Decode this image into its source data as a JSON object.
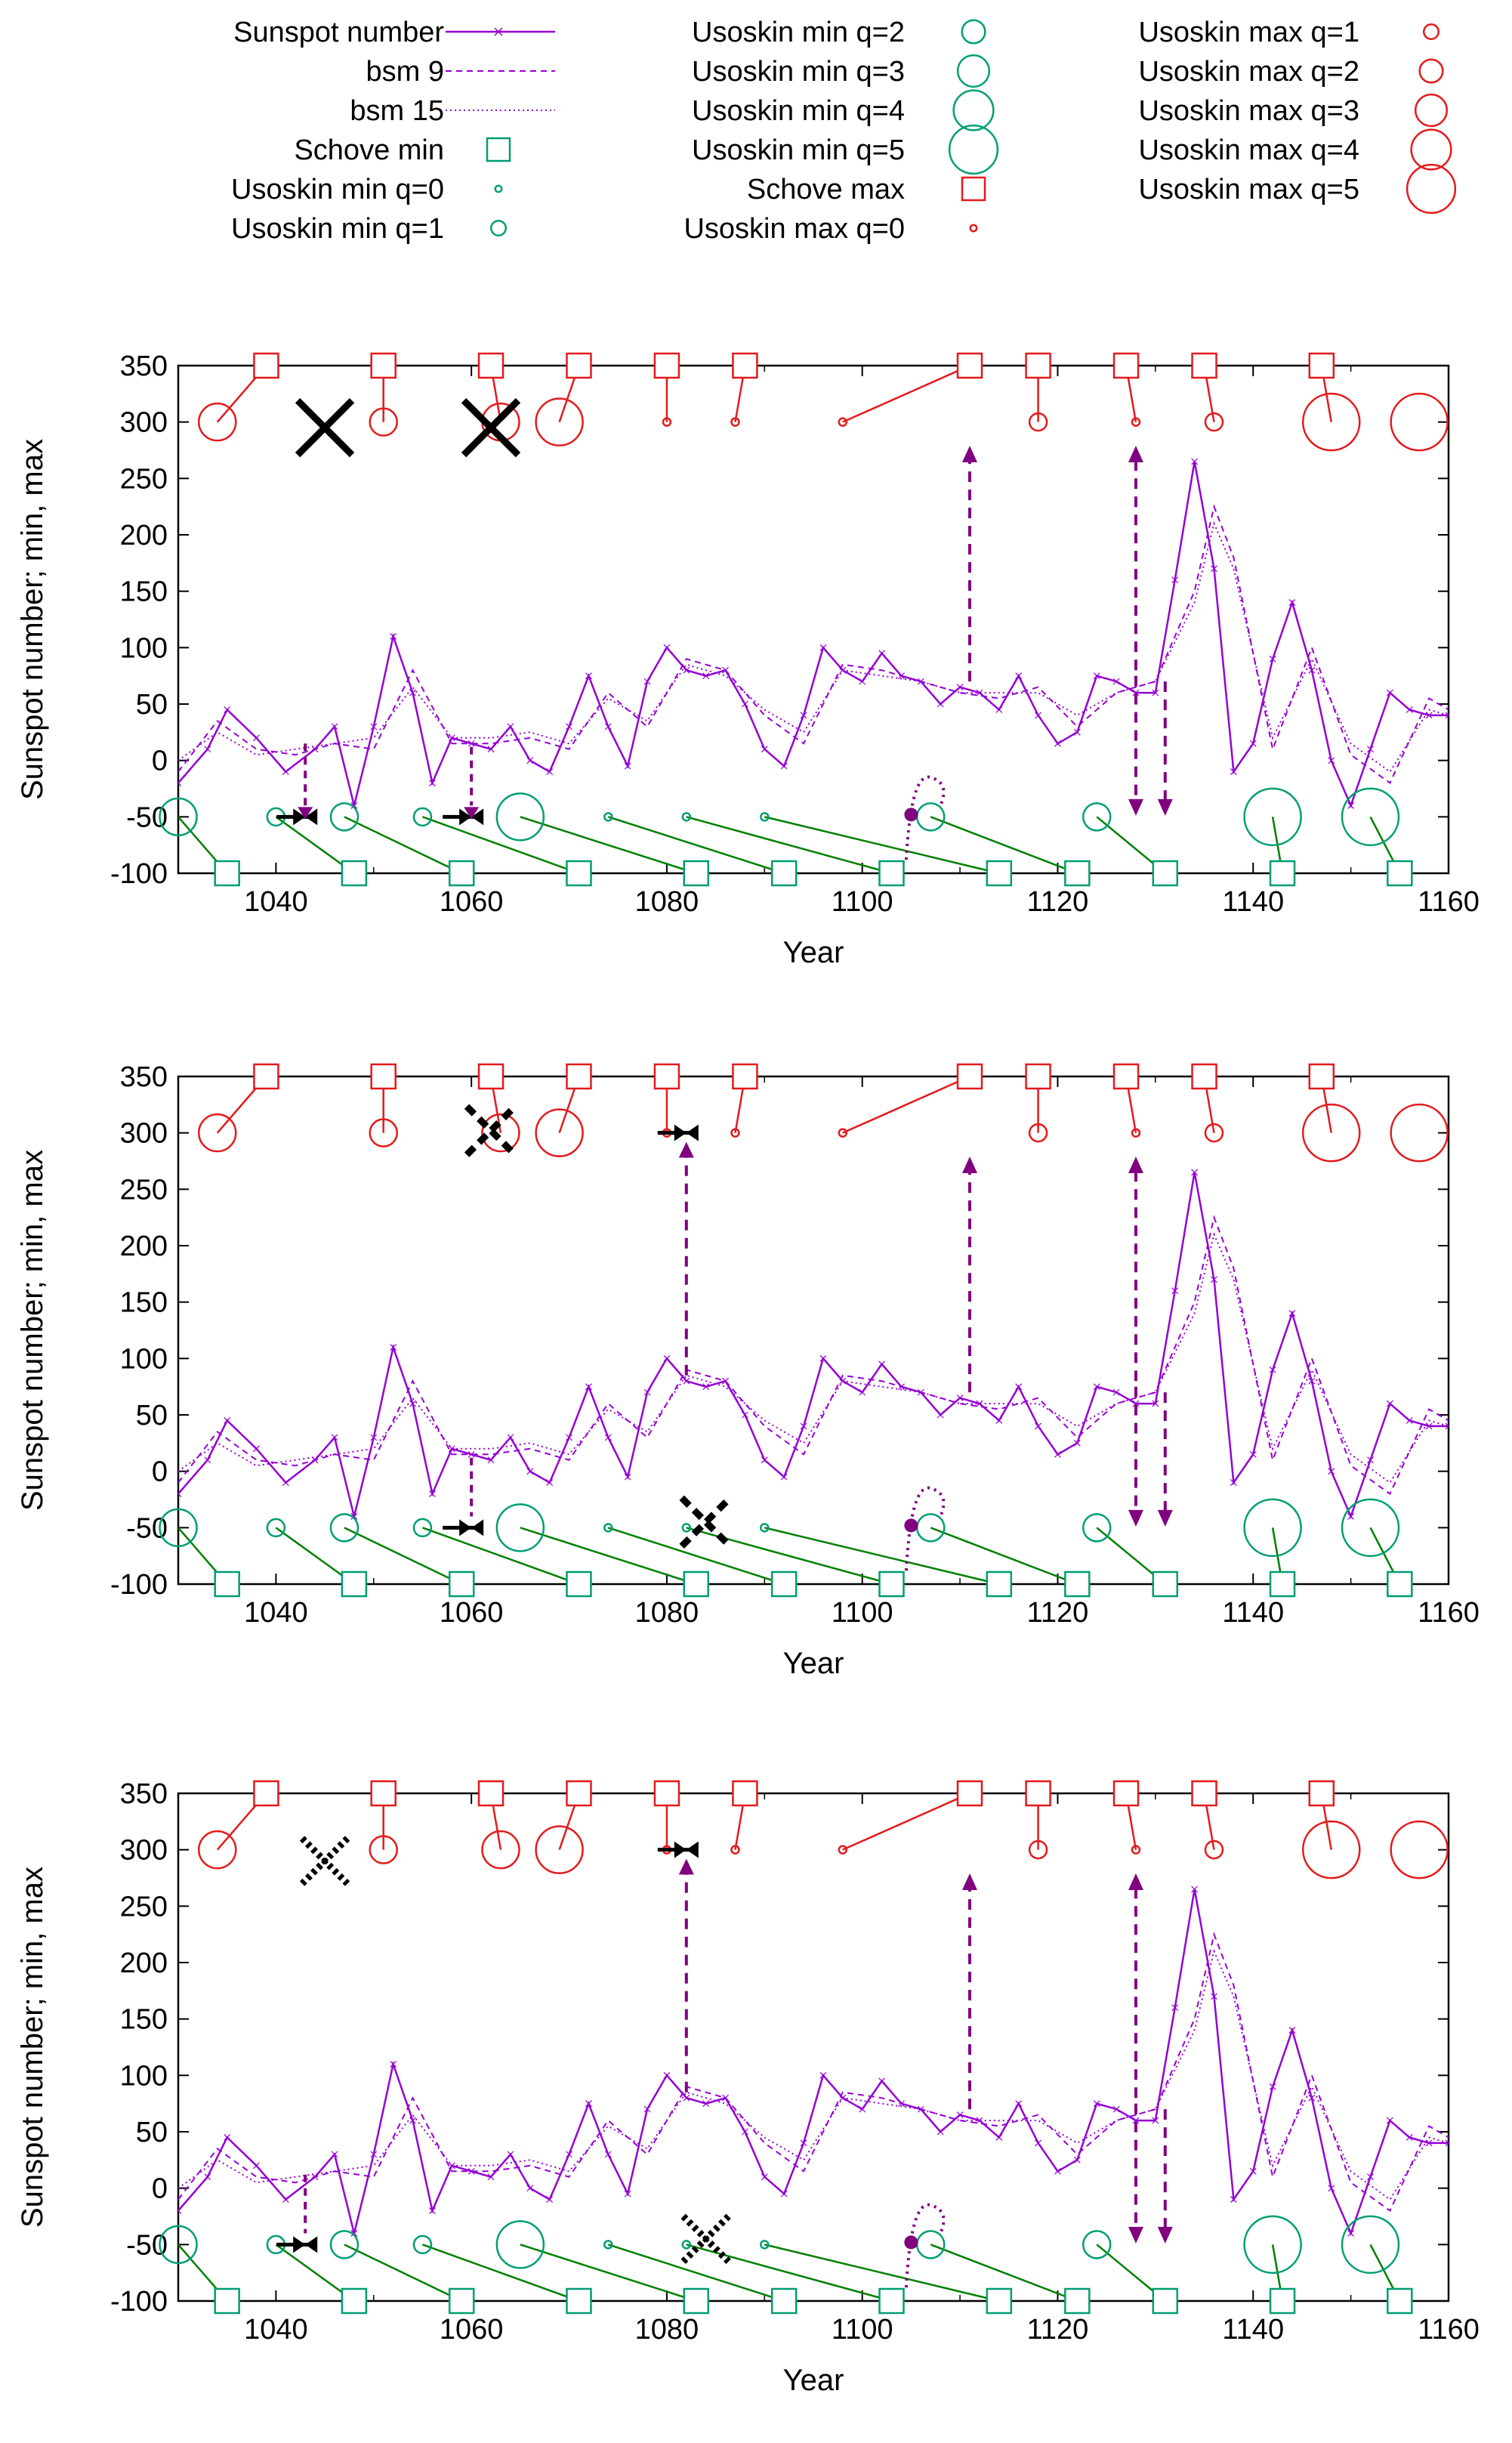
{
  "colors": {
    "sunspot": "#9400d3",
    "bsm": "#9400d3",
    "min": "#009e73",
    "min_line": "#008000",
    "max": "#e41a1c",
    "annotation": "#800080",
    "cross": "#000000"
  },
  "legend": {
    "items": [
      {
        "label": "Sunspot number",
        "kind": "line-solid"
      },
      {
        "label": "bsm 9",
        "kind": "line-dash"
      },
      {
        "label": "bsm 15",
        "kind": "line-dot"
      },
      {
        "label": "Schove min",
        "kind": "sq-green"
      },
      {
        "label": "Usoskin min q=0",
        "kind": "circ-green",
        "q": 0
      },
      {
        "label": "Usoskin min q=1",
        "kind": "circ-green",
        "q": 1
      },
      {
        "label": "Usoskin min q=2",
        "kind": "circ-green",
        "q": 2
      },
      {
        "label": "Usoskin min q=3",
        "kind": "circ-green",
        "q": 3
      },
      {
        "label": "Usoskin min q=4",
        "kind": "circ-green",
        "q": 4
      },
      {
        "label": "Usoskin min q=5",
        "kind": "circ-green",
        "q": 5
      },
      {
        "label": "Schove max",
        "kind": "sq-red"
      },
      {
        "label": "Usoskin max q=0",
        "kind": "circ-red",
        "q": 0
      },
      {
        "label": "Usoskin max q=1",
        "kind": "circ-red",
        "q": 1
      },
      {
        "label": "Usoskin max q=2",
        "kind": "circ-red",
        "q": 2
      },
      {
        "label": "Usoskin max q=3",
        "kind": "circ-red",
        "q": 3
      },
      {
        "label": "Usoskin max q=4",
        "kind": "circ-red",
        "q": 4
      },
      {
        "label": "Usoskin max q=5",
        "kind": "circ-red",
        "q": 5
      }
    ]
  },
  "chart_data": [
    {
      "type": "line",
      "xlabel": "Year",
      "ylabel": "Sunspot number; min, max",
      "xlim": [
        1030,
        1160
      ],
      "ylim": [
        -100,
        350
      ],
      "xticks": [
        1040,
        1060,
        1080,
        1100,
        1120,
        1140,
        1160
      ],
      "yticks": [
        -100,
        -50,
        0,
        50,
        100,
        150,
        200,
        250,
        300,
        350
      ],
      "series": [
        {
          "name": "Sunspot number",
          "style": "solid",
          "x": [
            1030,
            1033,
            1035,
            1038,
            1041,
            1044,
            1046,
            1048,
            1050,
            1052,
            1054,
            1056,
            1058,
            1060,
            1062,
            1064,
            1066,
            1068,
            1070,
            1072,
            1074,
            1076,
            1078,
            1080,
            1082,
            1084,
            1086,
            1088,
            1090,
            1092,
            1094,
            1096,
            1098,
            1100,
            1102,
            1104,
            1106,
            1108,
            1110,
            1112,
            1114,
            1116,
            1118,
            1120,
            1122,
            1124,
            1126,
            1128,
            1130,
            1132,
            1134,
            1136,
            1138,
            1140,
            1142,
            1144,
            1146,
            1148,
            1150,
            1152,
            1154,
            1156,
            1158,
            1160
          ],
          "y": [
            -20,
            10,
            45,
            20,
            -10,
            10,
            30,
            -40,
            30,
            110,
            60,
            -20,
            20,
            15,
            10,
            30,
            0,
            -10,
            30,
            75,
            30,
            -5,
            70,
            100,
            80,
            75,
            80,
            50,
            10,
            -5,
            40,
            100,
            80,
            70,
            95,
            75,
            70,
            50,
            65,
            60,
            45,
            75,
            40,
            15,
            25,
            75,
            70,
            60,
            60,
            160,
            265,
            170,
            -10,
            15,
            90,
            140,
            80,
            0,
            -40,
            10,
            60,
            45,
            40,
            40
          ]
        },
        {
          "name": "bsm 9",
          "style": "dash",
          "x": [
            1030,
            1034,
            1038,
            1042,
            1046,
            1050,
            1054,
            1058,
            1062,
            1066,
            1070,
            1074,
            1078,
            1082,
            1086,
            1090,
            1094,
            1098,
            1102,
            1106,
            1110,
            1114,
            1118,
            1122,
            1126,
            1130,
            1134,
            1136,
            1138,
            1142,
            1146,
            1150,
            1154,
            1158,
            1160
          ],
          "y": [
            -10,
            35,
            10,
            5,
            15,
            10,
            80,
            15,
            15,
            20,
            10,
            60,
            30,
            90,
            80,
            40,
            15,
            85,
            80,
            70,
            60,
            55,
            65,
            30,
            60,
            70,
            150,
            225,
            180,
            10,
            100,
            5,
            -20,
            55,
            45
          ]
        },
        {
          "name": "bsm 15",
          "style": "dot",
          "x": [
            1030,
            1034,
            1038,
            1042,
            1046,
            1050,
            1054,
            1058,
            1062,
            1066,
            1070,
            1074,
            1078,
            1082,
            1086,
            1090,
            1094,
            1098,
            1102,
            1106,
            1110,
            1114,
            1118,
            1122,
            1126,
            1130,
            1134,
            1136,
            1138,
            1142,
            1146,
            1150,
            1154,
            1158,
            1160
          ],
          "y": [
            0,
            25,
            5,
            10,
            15,
            20,
            65,
            20,
            20,
            25,
            15,
            55,
            35,
            85,
            75,
            45,
            25,
            80,
            75,
            70,
            60,
            60,
            60,
            40,
            60,
            70,
            140,
            210,
            170,
            20,
            90,
            15,
            -10,
            45,
            40
          ]
        }
      ],
      "schove_min": [
        1035,
        1048,
        1059,
        1071,
        1083,
        1092,
        1103,
        1114,
        1122,
        1131,
        1143,
        1155
      ],
      "schove_max": [
        1039,
        1051,
        1062,
        1071,
        1080,
        1088,
        1111,
        1118,
        1127,
        1135,
        1147
      ],
      "usoskin_min": [
        {
          "x": 1030,
          "q": 3
        },
        {
          "x": 1040,
          "q": 1
        },
        {
          "x": 1047,
          "q": 2
        },
        {
          "x": 1055,
          "q": 1
        },
        {
          "x": 1065,
          "q": 4
        },
        {
          "x": 1074,
          "q": 0
        },
        {
          "x": 1082,
          "q": 0
        },
        {
          "x": 1090,
          "q": 0
        },
        {
          "x": 1107,
          "q": 2
        },
        {
          "x": 1124,
          "q": 2
        },
        {
          "x": 1142,
          "q": 5
        },
        {
          "x": 1152,
          "q": 5
        }
      ],
      "usoskin_max": [
        {
          "x": 1034,
          "q": 3
        },
        {
          "x": 1051,
          "q": 2
        },
        {
          "x": 1063,
          "q": 3
        },
        {
          "x": 1069,
          "q": 4
        },
        {
          "x": 1080,
          "q": 0
        },
        {
          "x": 1087,
          "q": 0
        },
        {
          "x": 1098,
          "q": 0
        },
        {
          "x": 1118,
          "q": 1
        },
        {
          "x": 1128,
          "q": 0
        },
        {
          "x": 1136,
          "q": 1
        },
        {
          "x": 1148,
          "q": 5
        },
        {
          "x": 1157,
          "q": 5
        }
      ]
    },
    {
      "type": "line",
      "xlabel": "Year",
      "ylabel": "Sunspot number; min, max",
      "xlim": [
        1030,
        1160
      ],
      "ylim": [
        -100,
        350
      ],
      "xticks": [
        1040,
        1060,
        1080,
        1100,
        1120,
        1140,
        1160
      ],
      "yticks": [
        -100,
        -50,
        0,
        50,
        100,
        150,
        200,
        250,
        300,
        350
      ]
    },
    {
      "type": "line",
      "xlabel": "Year",
      "ylabel": "Sunspot number; min, max",
      "xlim": [
        1030,
        1160
      ],
      "ylim": [
        -100,
        350
      ],
      "xticks": [
        1040,
        1060,
        1080,
        1100,
        1120,
        1140,
        1160
      ],
      "yticks": [
        -100,
        -50,
        0,
        50,
        100,
        150,
        200,
        250,
        300,
        350
      ]
    }
  ]
}
